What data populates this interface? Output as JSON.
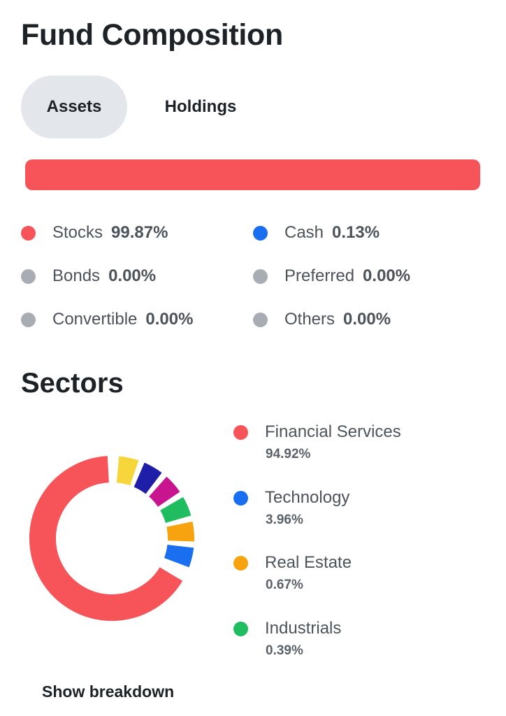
{
  "header": {
    "title": "Fund Composition"
  },
  "tabs": [
    {
      "label": "Assets",
      "active": true
    },
    {
      "label": "Holdings",
      "active": false
    }
  ],
  "asset_bar": {
    "fill_percent": 99.87,
    "fill_color": "#f65459"
  },
  "assets": [
    {
      "name": "Stocks",
      "value": "99.87%",
      "color": "#f65459"
    },
    {
      "name": "Cash",
      "value": "0.13%",
      "color": "#1a6ff0"
    },
    {
      "name": "Bonds",
      "value": "0.00%",
      "color": "#a8adb3"
    },
    {
      "name": "Preferred",
      "value": "0.00%",
      "color": "#a8adb3"
    },
    {
      "name": "Convertible",
      "value": "0.00%",
      "color": "#a8adb3"
    },
    {
      "name": "Others",
      "value": "0.00%",
      "color": "#a8adb3"
    }
  ],
  "sectors_title": "Sectors",
  "chart_data": {
    "type": "pie",
    "style": "donut",
    "categories": [
      "Financial Services",
      "Technology",
      "Real Estate",
      "Industrials"
    ],
    "values": [
      94.92,
      3.96,
      0.67,
      0.39
    ],
    "labels": [
      "94.92%",
      "3.96%",
      "0.67%",
      "0.39%"
    ],
    "colors": [
      "#f65459",
      "#1a6ff0",
      "#f7a30f",
      "#1fbd5f"
    ],
    "unlabeled_segment_colors": [
      "#f6d63a",
      "#1f1ea8",
      "#c7148f"
    ]
  },
  "show_breakdown_label": "Show breakdown"
}
